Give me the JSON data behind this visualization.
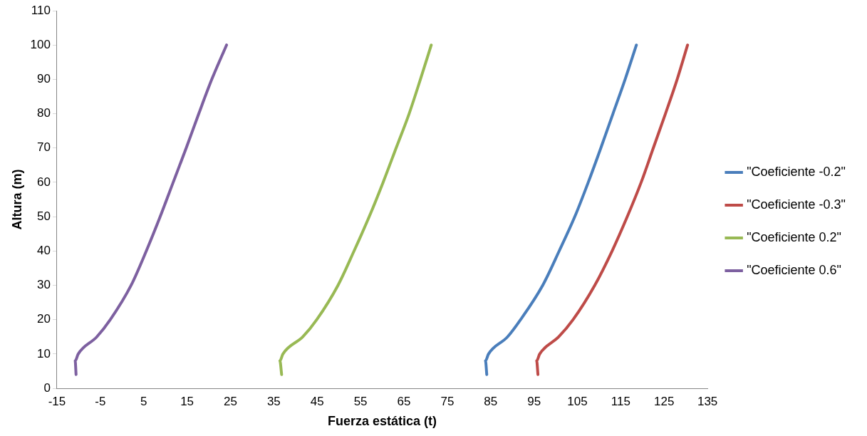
{
  "chart_data": {
    "type": "line",
    "xlabel": "Fuerza estática (t)",
    "ylabel": "Altura (m)",
    "xlim": [
      -15,
      135
    ],
    "xticks": [
      -15,
      -5,
      5,
      15,
      25,
      35,
      45,
      55,
      65,
      75,
      85,
      95,
      105,
      115,
      125,
      135
    ],
    "ylim": [
      0,
      110
    ],
    "yticks": [
      0,
      10,
      20,
      30,
      40,
      50,
      60,
      70,
      80,
      90,
      100,
      110
    ],
    "grid": false,
    "legend": "right",
    "marker": "none",
    "line_style": "solid",
    "series": [
      {
        "name": "\"Coeficiente -0.2\"",
        "color": "#4a7ebb",
        "x": [
          84.1,
          83.8,
          84.5,
          88.9,
          91.9,
          97,
          100.8,
          104.4,
          107.5,
          110.4,
          113.2,
          116,
          118.6
        ],
        "values": [
          4,
          8,
          10,
          15,
          20,
          30,
          40,
          50,
          60,
          70,
          80,
          90,
          100
        ]
      },
      {
        "name": "\"Coeficiente -0.3\"",
        "color": "#be4b48",
        "x": [
          95.9,
          95.6,
          96.3,
          100.7,
          104,
          109,
          113,
          116.5,
          119.7,
          122.5,
          125.3,
          128,
          130.4
        ],
        "values": [
          4,
          8,
          10,
          15,
          20,
          30,
          40,
          50,
          60,
          70,
          80,
          90,
          100
        ]
      },
      {
        "name": "\"Coeficiente 0.2\"",
        "color": "#98b954",
        "x": [
          36.8,
          36.4,
          37.1,
          41.7,
          44.9,
          49.8,
          53.5,
          57,
          60.2,
          63.2,
          66.2,
          68.8,
          71.3
        ],
        "values": [
          4,
          8,
          10,
          15,
          20,
          30,
          40,
          50,
          60,
          70,
          80,
          90,
          100
        ]
      },
      {
        "name": "\"Coeficiente 0.6\"",
        "color": "#7d60a0",
        "x": [
          -10.6,
          -10.8,
          -10.1,
          -5.8,
          -2.7,
          2.1,
          5.6,
          8.8,
          11.8,
          14.8,
          17.7,
          20.7,
          24.1
        ],
        "values": [
          4,
          8,
          10,
          15,
          20,
          30,
          40,
          50,
          60,
          70,
          80,
          90,
          100
        ]
      }
    ]
  }
}
